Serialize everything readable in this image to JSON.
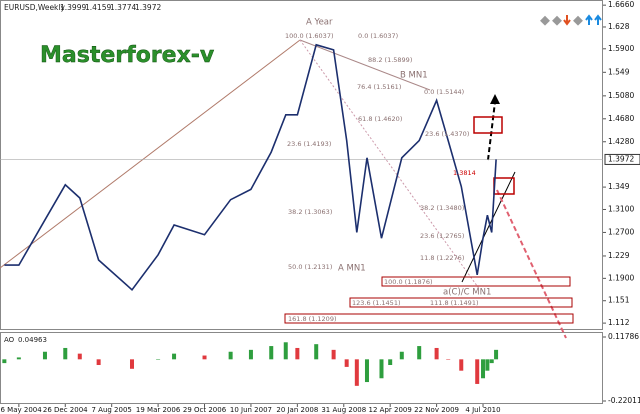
{
  "chart_data": {
    "type": "line",
    "title": "EURUSD,Weekly",
    "quote": {
      "open": 1.3999,
      "high": 1.4159,
      "low": 1.3774,
      "close": 1.3972
    },
    "watermark": "Masterforex-v",
    "color": "#1c2f6e",
    "x": [
      "7 Mar 2004",
      "16 May 2004",
      "19 Sep 2004",
      "26 Dec 2004",
      "6 Mar 2005",
      "5 Jun 2005",
      "13 Nov 2005",
      "19 Mar 2006",
      "4 Jun 2006",
      "29 Oct 2006",
      "4 Mar 2007",
      "10 Jun 2007",
      "16 Sep 2007",
      "25 Nov 2007",
      "20 Jan 2008",
      "20 Apr 2008",
      "13 Jul 2008",
      "14 Sep 2008",
      "2 Nov 2008",
      "21 Dec 2008",
      "1 Mar 2009",
      "12 Apr 2009",
      "7 Jun 2009",
      "30 Aug 2009",
      "22 Nov 2009",
      "17 Jan 2010",
      "21 Mar 2010",
      "6 Jun 2010",
      "4 Jul 2010",
      "25 Jul 2010",
      "15 Aug 2010",
      "5 Sep 2010"
    ],
    "values": [
      1.213,
      1.213,
      1.292,
      1.353,
      1.33,
      1.222,
      1.17,
      1.231,
      1.283,
      1.266,
      1.327,
      1.345,
      1.41,
      1.475,
      1.475,
      1.597,
      1.588,
      1.43,
      1.27,
      1.4,
      1.26,
      1.32,
      1.4,
      1.43,
      1.5,
      1.43,
      1.35,
      1.196,
      1.26,
      1.3,
      1.27,
      1.3972
    ],
    "xlim": [
      "15 Feb 2004",
      "3 Feb 2012"
    ],
    "xticks": [
      "16 May 2004",
      "26 Dec 2004",
      "7 Aug 2005",
      "19 Mar 2006",
      "29 Oct 2006",
      "10 Jun 2007",
      "20 Jan 2008",
      "31 Aug 2008",
      "12 Apr 2009",
      "22 Nov 2009",
      "4 Jul 2010"
    ],
    "ylim": [
      1.1,
      1.675
    ],
    "yticks": [
      {
        "value": 1.666,
        "label": "1.6660"
      },
      1.628,
      {
        "value": 1.59,
        "label": "1.5900"
      },
      1.549,
      {
        "value": 1.508,
        "label": "1.5080"
      },
      {
        "value": 1.468,
        "label": "1.4680"
      },
      {
        "value": 1.428,
        "label": "1.4280"
      },
      1.349,
      {
        "value": 1.31,
        "label": "1.3100"
      },
      {
        "value": 1.27,
        "label": "1.2700"
      },
      1.229,
      {
        "value": 1.19,
        "label": "1.1900"
      },
      1.151,
      1.112
    ],
    "annotations": [
      "A Year",
      "B MN1",
      "A MN1",
      "a(C)/C MN1",
      "100.0 (1.6037)",
      "0.0 (1.6037)",
      "88.2 (1.5899)",
      "76.4 (1.5161)",
      "0.0 (1.5144)",
      "61.8 (1.4620)",
      "23.6 (1.4193)",
      "23.6 (1.4370)",
      "38.2 (1.3063)",
      "38.2 (1.3480)",
      "23.6 (1.2765)",
      "50.0 (1.2131)",
      "11.8 (1.2276)",
      "100.0 (1.1876)",
      "123.6 (1.1451)",
      "111.8 (1.1491)",
      "161.8 (1.1209)",
      "1.3814"
    ],
    "ao": {
      "title": "AO",
      "value": 0.04963,
      "up_color": "#2e9e3e",
      "down_color": "#e0393e",
      "values": [
        -0.02,
        0.01,
        0.04,
        0.06,
        0.03,
        -0.03,
        -0.05,
        0.0,
        0.03,
        0.02,
        0.04,
        0.05,
        0.07,
        0.09,
        0.06,
        0.08,
        0.05,
        -0.04,
        -0.14,
        -0.12,
        -0.1,
        -0.03,
        0.04,
        0.07,
        0.06,
        0.0,
        -0.06,
        -0.13,
        -0.1,
        -0.06,
        -0.02,
        0.05
      ],
      "ylim": [
        -0.2359,
        0.139
      ],
      "yticks": [
        0.11786,
        -0.22011
      ]
    }
  }
}
